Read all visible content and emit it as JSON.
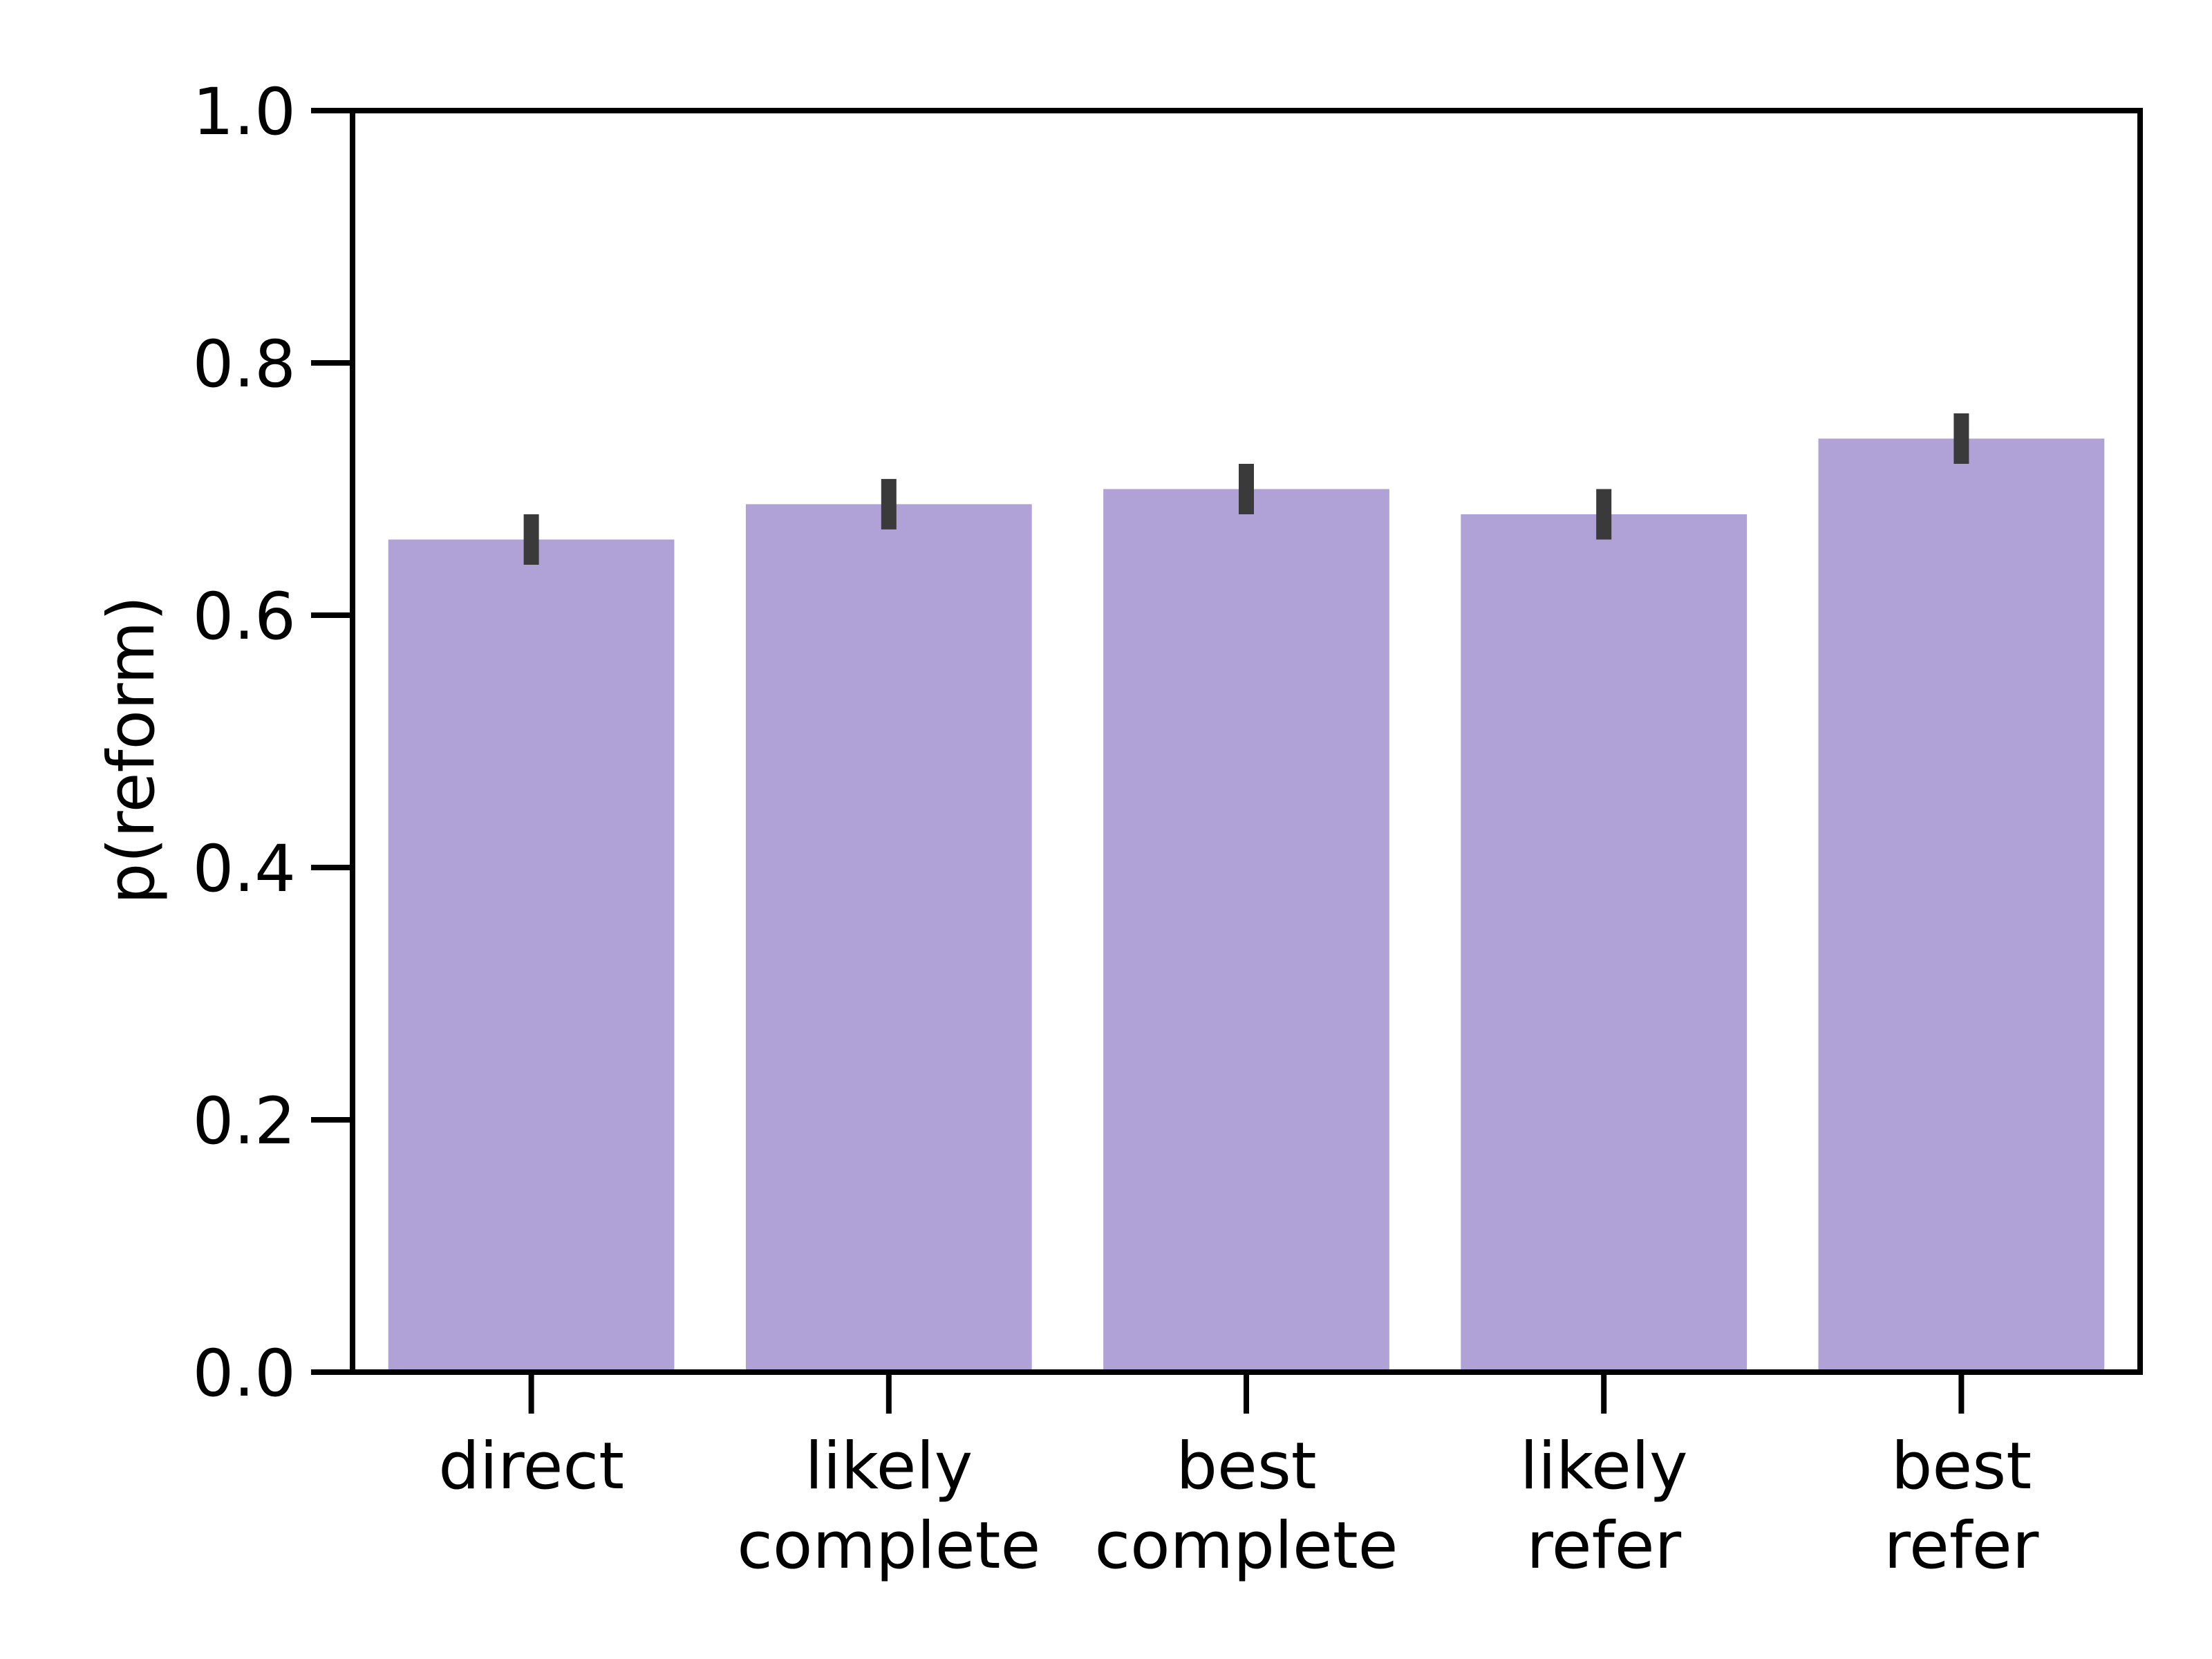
{
  "chart_data": {
    "type": "bar",
    "title": "",
    "xlabel": "",
    "ylabel": "p(reform)",
    "ylim": [
      0,
      1.0
    ],
    "yticks": [
      0.0,
      0.2,
      0.4,
      0.6,
      0.8,
      1.0
    ],
    "ytick_labels": [
      "0.0",
      "0.2",
      "0.4",
      "0.6",
      "0.8",
      "1.0"
    ],
    "categories": [
      [
        "direct"
      ],
      [
        "likely",
        "complete"
      ],
      [
        "best",
        "complete"
      ],
      [
        "likely",
        "refer"
      ],
      [
        "best",
        "refer"
      ]
    ],
    "values": [
      0.66,
      0.688,
      0.7,
      0.68,
      0.74
    ],
    "error_low": [
      0.64,
      0.668,
      0.68,
      0.66,
      0.72
    ],
    "error_high": [
      0.68,
      0.708,
      0.72,
      0.7,
      0.76
    ],
    "grid": false,
    "legend": "none",
    "colors": {
      "bar": "#b0a2d6",
      "error_bar": "#3a3a3a",
      "axis": "#000000"
    }
  }
}
